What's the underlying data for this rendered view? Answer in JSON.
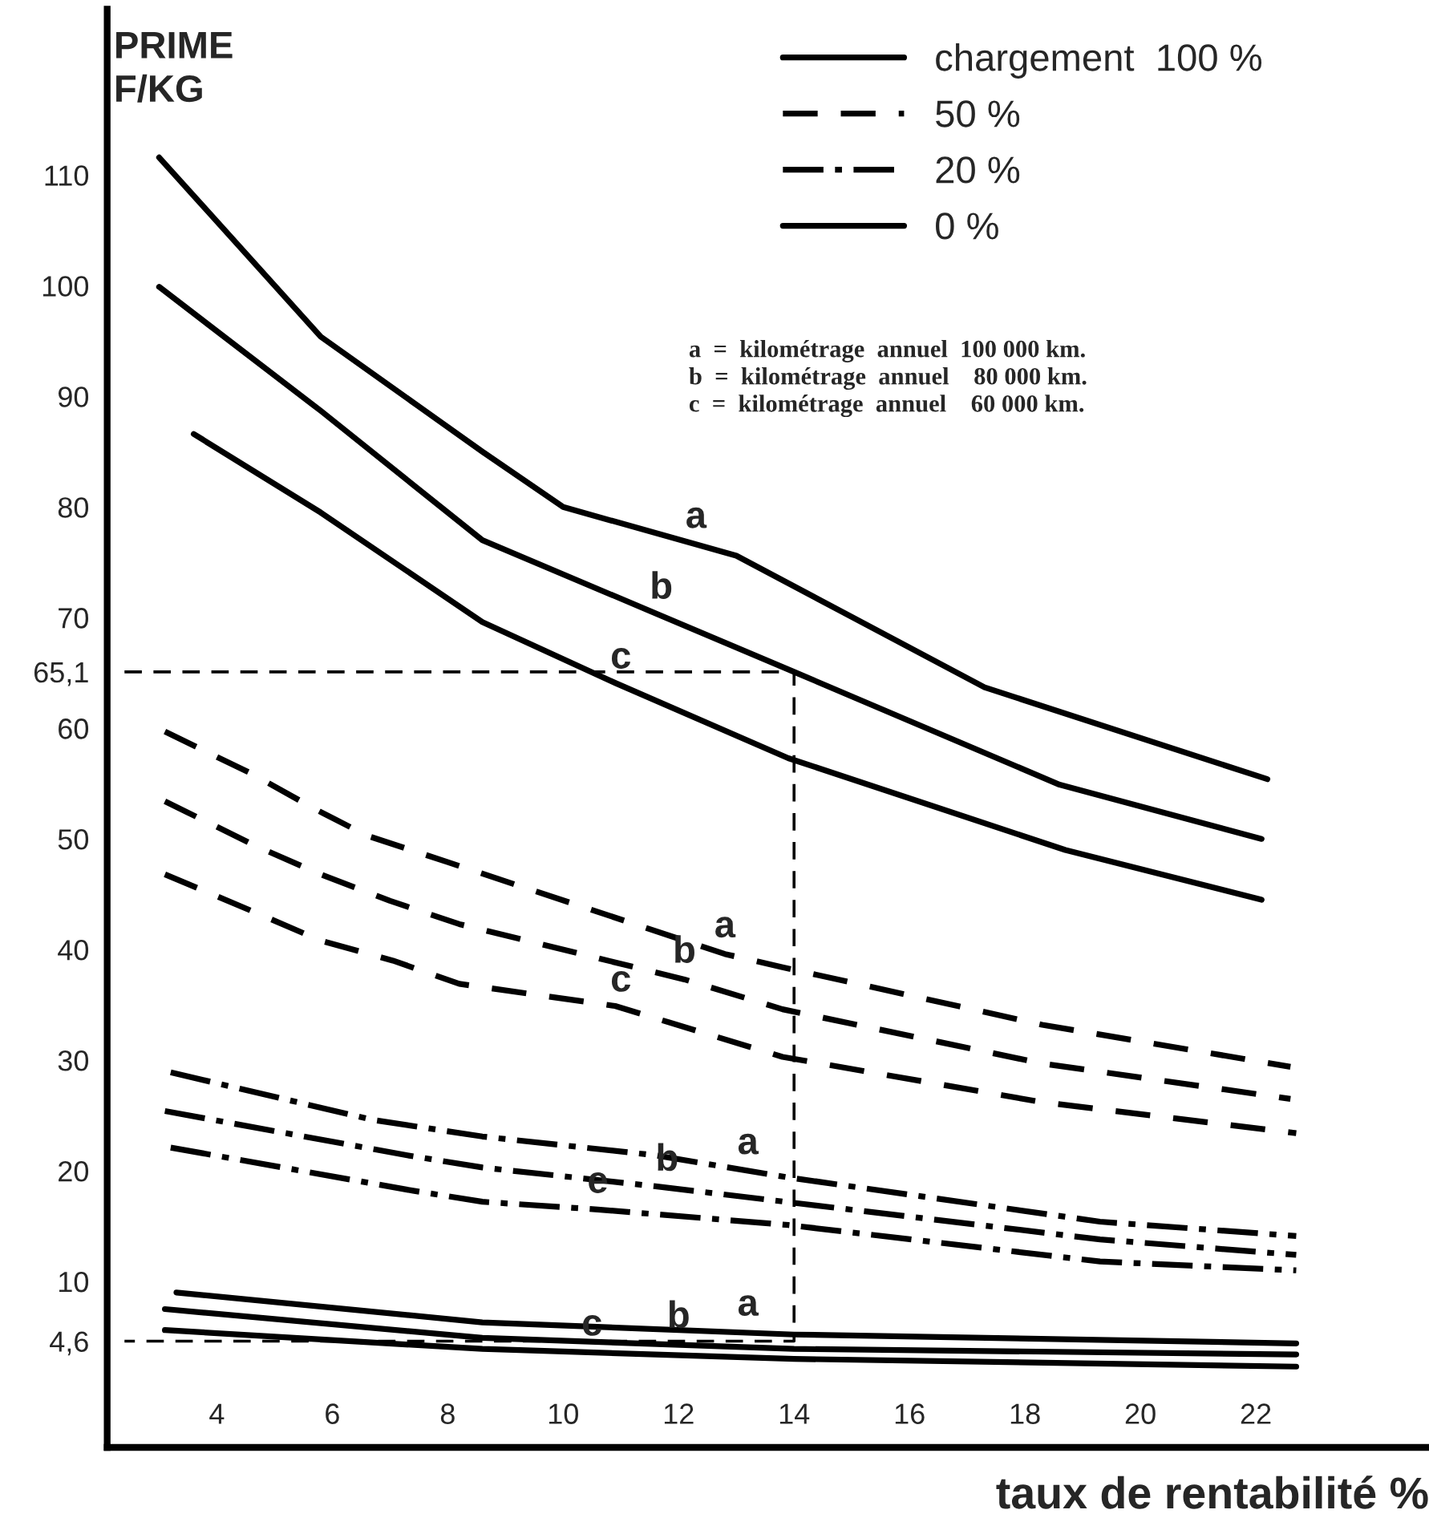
{
  "chart_data": {
    "type": "line",
    "ylabel": "PRIME\nF/KG",
    "xlabel": "taux de rentabilité %",
    "xlim": [
      2.1,
      25
    ],
    "ylim": [
      -5,
      125
    ],
    "xticks": [
      4,
      6,
      8,
      10,
      12,
      14,
      16,
      18,
      20,
      22
    ],
    "yticks": [
      {
        "value": 4.6,
        "label": "4,6"
      },
      10,
      20,
      30,
      40,
      50,
      60,
      {
        "value": 65.1,
        "label": "65,1"
      },
      70,
      80,
      90,
      100,
      110
    ],
    "grid": false,
    "legend": "top right",
    "marker": "none",
    "series": [
      {
        "name": "chargement  100 %",
        "color": "#000000",
        "line_style": "solid",
        "x": [
          3.0,
          5.8,
          8.6,
          10,
          13.0,
          17.3,
          22.2
        ],
        "values": [
          111.6,
          95.4,
          85,
          80,
          75.6,
          63.7,
          55.4
        ]
      },
      {
        "color": "#000000",
        "line_style": "solid",
        "x": [
          3.0,
          5.8,
          8.6,
          14,
          18.6,
          22.1
        ],
        "values": [
          99.9,
          88.7,
          77,
          65.1,
          54.9,
          50
        ]
      },
      {
        "color": "#000000",
        "line_style": "solid",
        "x": [
          3.6,
          5.8,
          8.6,
          10.9,
          13.9,
          18.7,
          22.1
        ],
        "values": [
          86.6,
          79.5,
          69.6,
          64.1,
          57.3,
          49,
          44.5
        ]
      },
      {
        "name": "50 %",
        "color": "#000000",
        "line_style": "dashed",
        "x": [
          3.1,
          4.6,
          5.7,
          6.6,
          8.0,
          12.8,
          13.8,
          18.3,
          22.6
        ],
        "values": [
          59.7,
          55.9,
          52.7,
          50.3,
          47.9,
          39.6,
          38.4,
          33.2,
          29.4
        ]
      },
      {
        "color": "#000000",
        "line_style": "dashed",
        "x": [
          3.1,
          4.7,
          5.8,
          7.0,
          8.2,
          12.1,
          13.8,
          18.3,
          22.6
        ],
        "values": [
          53.4,
          49.3,
          46.8,
          44.4,
          42.3,
          37.3,
          34.6,
          29.7,
          26.5
        ]
      },
      {
        "color": "#000000",
        "line_style": "dashed",
        "x": [
          3.1,
          4.6,
          5.8,
          7.05,
          8.2,
          10.9,
          13.8,
          18.3,
          22.7
        ],
        "values": [
          46.8,
          43.5,
          40.8,
          39,
          36.9,
          34.9,
          30.3,
          26.2,
          23.4
        ]
      },
      {
        "name": "20 %",
        "color": "#000000",
        "line_style": "dashdot",
        "x": [
          3.2,
          6.7,
          8.6,
          11.6,
          13.9,
          19.3,
          22.7
        ],
        "values": [
          28.9,
          24.6,
          23.1,
          21.4,
          19.4,
          15.4,
          14.1
        ]
      },
      {
        "color": "#000000",
        "line_style": "dashdot",
        "x": [
          3.1,
          7.3,
          8.6,
          11.6,
          19.3,
          22.7
        ],
        "values": [
          25.4,
          21.4,
          20.3,
          18.6,
          13.8,
          12.4
        ]
      },
      {
        "color": "#000000",
        "line_style": "dashdot",
        "x": [
          3.2,
          7.4,
          8.6,
          10.6,
          13.9,
          19.3,
          22.7
        ],
        "values": [
          22.1,
          18.2,
          17.2,
          16.5,
          15.1,
          11.8,
          11
        ]
      },
      {
        "name": "0 %",
        "color": "#000000",
        "line_style": "solid",
        "x": [
          3.3,
          8.6,
          14,
          22.7
        ],
        "values": [
          9.0,
          6.3,
          5.2,
          4.4
        ]
      },
      {
        "color": "#000000",
        "line_style": "solid",
        "x": [
          3.1,
          8.6,
          14,
          22.7
        ],
        "values": [
          7.5,
          4.9,
          3.9,
          3.4
        ]
      },
      {
        "color": "#000000",
        "line_style": "solid",
        "x": [
          3.1,
          8.6,
          14,
          22.7
        ],
        "values": [
          5.6,
          3.9,
          3.0,
          2.3
        ]
      },
      {
        "color": "#000000",
        "line_style": "dashed",
        "x": [
          2.4,
          14,
          14,
          2.4
        ],
        "values": [
          65.1,
          65.1,
          4.6,
          4.6
        ]
      }
    ],
    "annotations": [
      {
        "text": "a",
        "x": 12.3,
        "y": 76.6
      },
      {
        "text": "b",
        "x": 11.7,
        "y": 70.2
      },
      {
        "text": "c",
        "x": 11.0,
        "y": 63.9
      },
      {
        "text": "a",
        "x": 12.8,
        "y": 39.6
      },
      {
        "text": "b",
        "x": 12.1,
        "y": 37.3
      },
      {
        "text": "c",
        "x": 11.0,
        "y": 34.7
      },
      {
        "text": "a",
        "x": 13.2,
        "y": 20.0
      },
      {
        "text": "b",
        "x": 11.8,
        "y": 18.5
      },
      {
        "text": "e",
        "x": 10.6,
        "y": 16.5
      },
      {
        "text": "a",
        "x": 13.2,
        "y": 5.4
      },
      {
        "text": "b",
        "x": 12.0,
        "y": 4.3
      },
      {
        "text": "c",
        "x": 10.5,
        "y": 3.6
      },
      "a  =  kilométrage  annuel  100 000 km.",
      "b  =  kilométrage  annuel    80 000 km.",
      "c  =  kilométrage  annuel    60 000 km."
    ]
  }
}
